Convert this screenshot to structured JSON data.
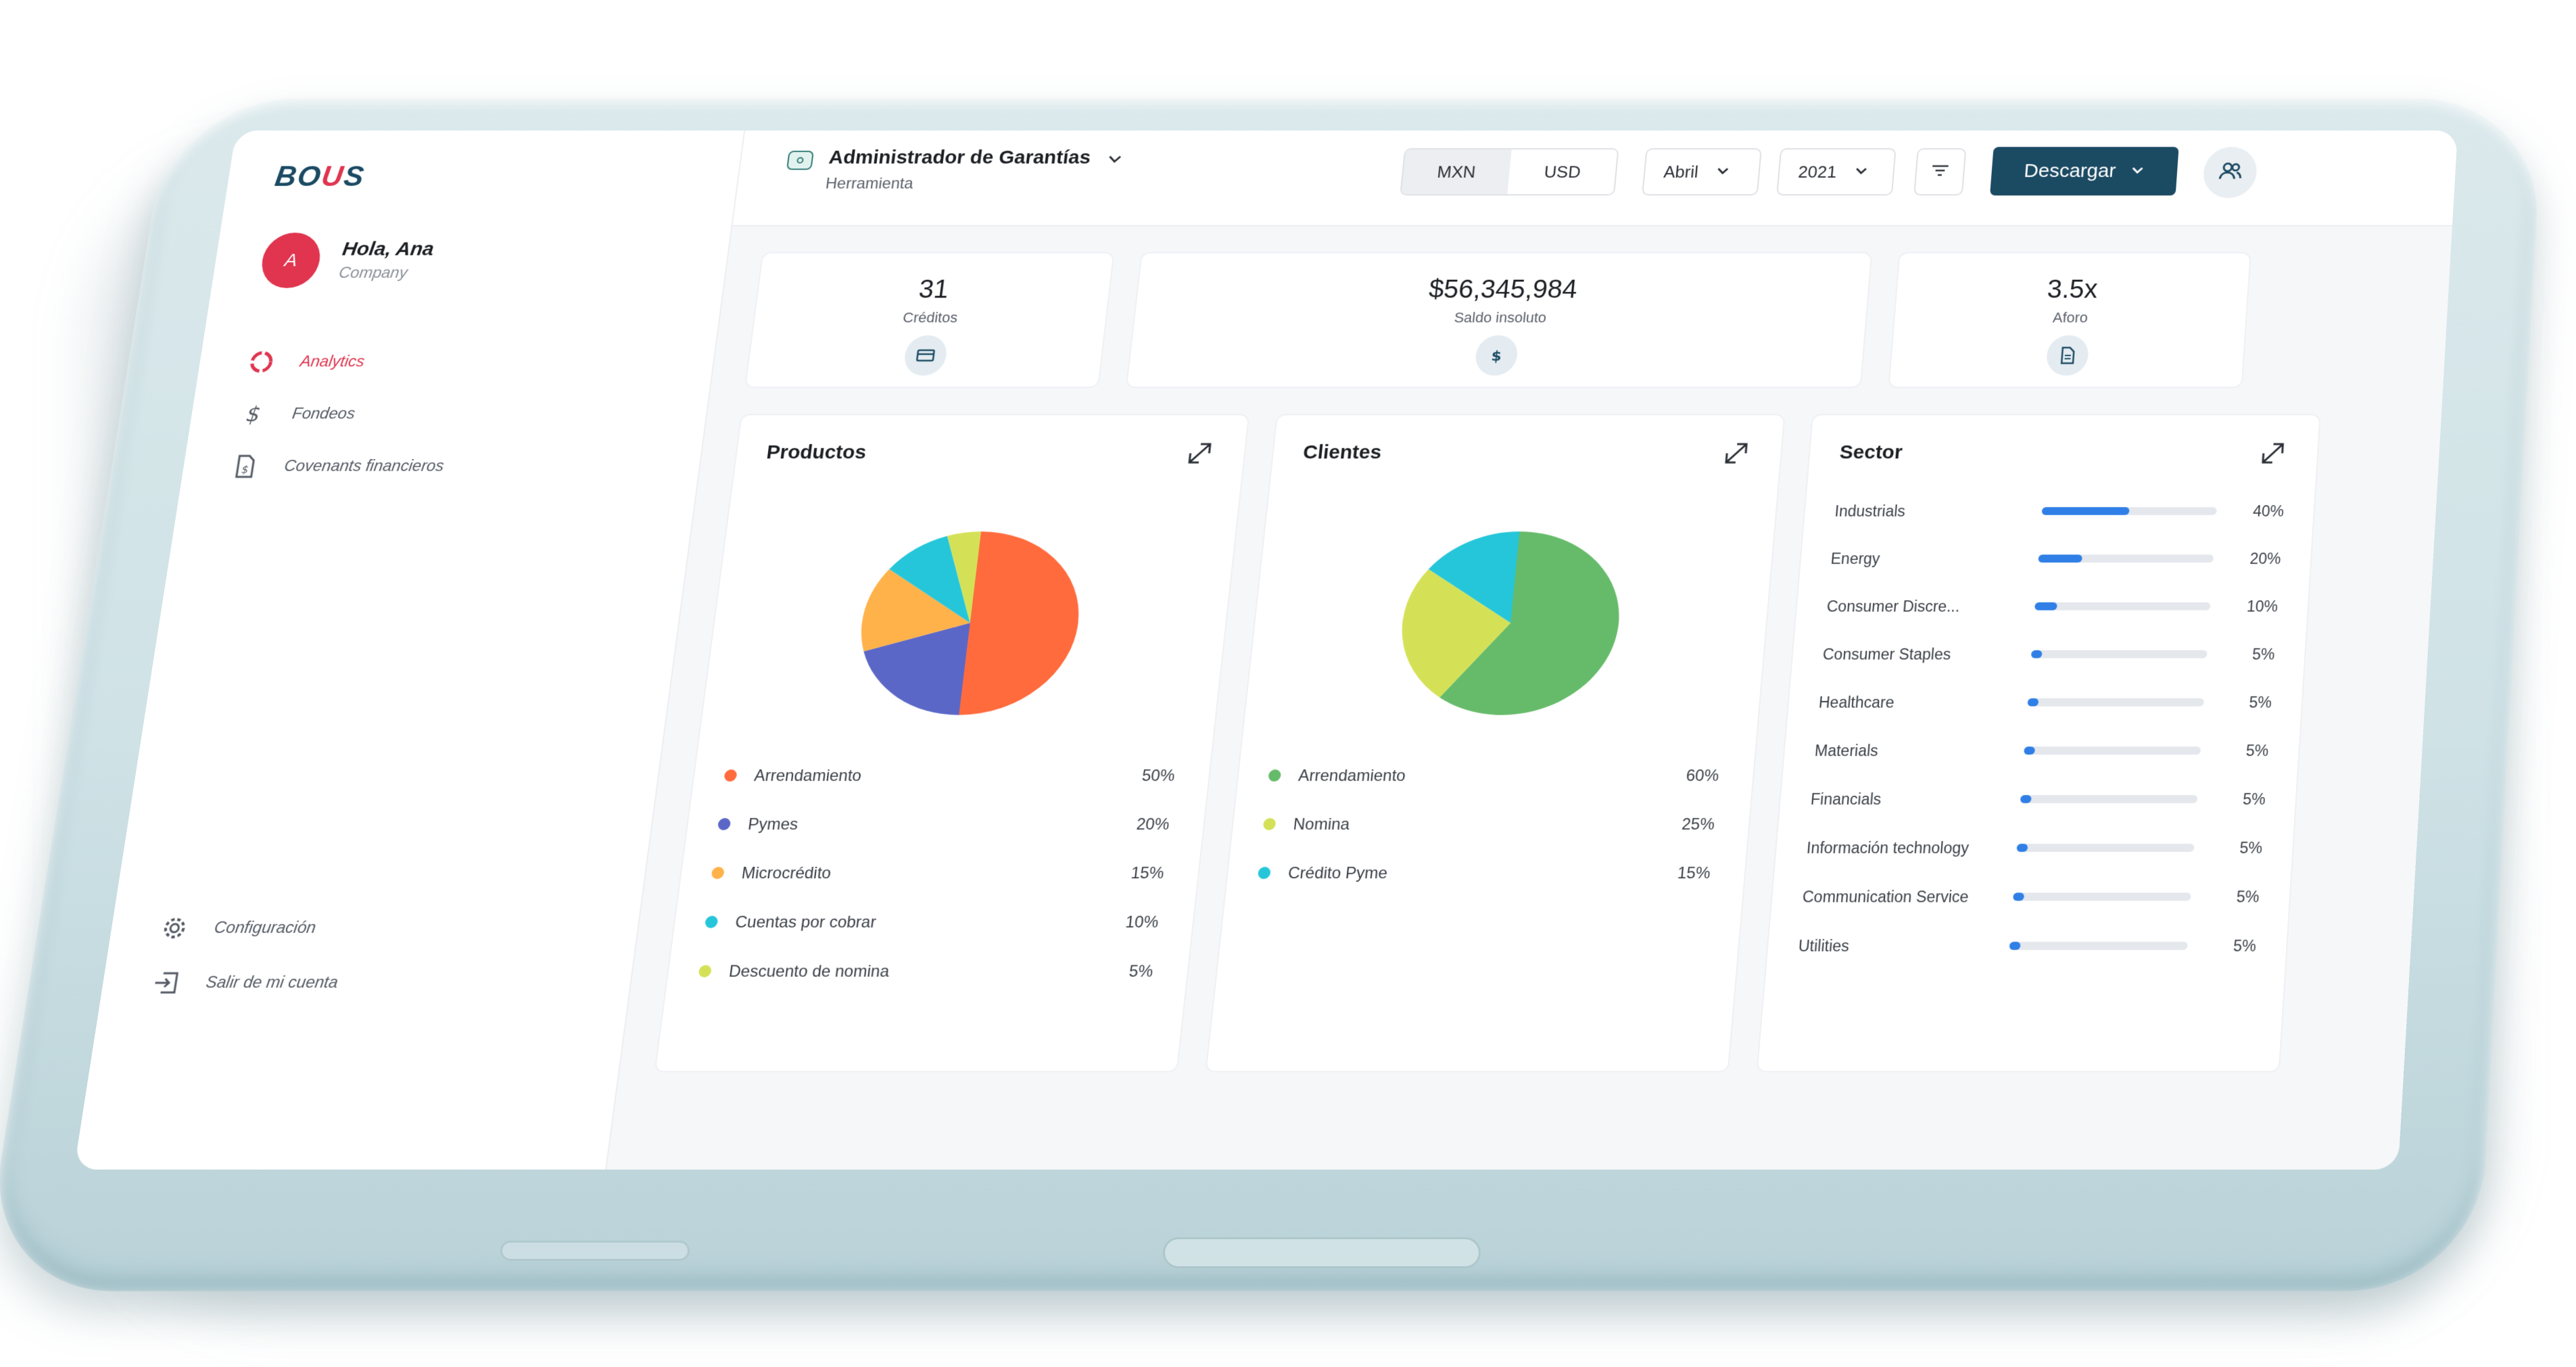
{
  "app": {
    "logo": {
      "pre": "BO",
      "u": "U",
      "post": "S"
    },
    "user": {
      "initial": "A",
      "greeting": "Hola, Ana",
      "company": "Company"
    }
  },
  "sidebar": {
    "items": [
      {
        "label": "Analytics",
        "icon": "circle-segments-icon",
        "active": true
      },
      {
        "label": "Fondeos",
        "icon": "dollar-icon",
        "active": false
      },
      {
        "label": "Covenants financieros",
        "icon": "document-dollar-icon",
        "active": false
      }
    ],
    "bottom": [
      {
        "label": "Configuración",
        "icon": "gear-icon"
      },
      {
        "label": "Salir de mi cuenta",
        "icon": "logout-icon"
      }
    ]
  },
  "header": {
    "title": "Administrador de Garantías",
    "subtitle": "Herramienta",
    "currency": {
      "options": [
        "MXN",
        "USD"
      ],
      "selected": "MXN"
    },
    "month": "Abril",
    "year": "2021",
    "download_label": "Descargar"
  },
  "kpis": [
    {
      "value": "31",
      "label": "Créditos",
      "icon": "card-icon"
    },
    {
      "value": "$56,345,984",
      "label": "Saldo insoluto",
      "icon": "dollar-icon"
    },
    {
      "value": "3.5x",
      "label": "Aforo",
      "icon": "document-icon"
    }
  ],
  "panels": {
    "productos": {
      "title": "Productos",
      "items": [
        {
          "label": "Arrendamiento",
          "pct": "50%",
          "value": 50,
          "color": "#ff6b3d"
        },
        {
          "label": "Pymes",
          "pct": "20%",
          "value": 20,
          "color": "#5b67c7"
        },
        {
          "label": "Microcrédito",
          "pct": "15%",
          "value": 15,
          "color": "#ffb24a"
        },
        {
          "label": "Cuentas por cobrar",
          "pct": "10%",
          "value": 10,
          "color": "#26c6da"
        },
        {
          "label": "Descuento de nomina",
          "pct": "5%",
          "value": 5,
          "color": "#d4e157"
        }
      ]
    },
    "clientes": {
      "title": "Clientes",
      "items": [
        {
          "label": "Arrendamiento",
          "pct": "60%",
          "value": 60,
          "color": "#66bb6a"
        },
        {
          "label": "Nomina",
          "pct": "25%",
          "value": 25,
          "color": "#d4e157"
        },
        {
          "label": "Crédito Pyme",
          "pct": "15%",
          "value": 15,
          "color": "#26c6da"
        }
      ]
    },
    "sector": {
      "title": "Sector",
      "items": [
        {
          "label": "Industrials",
          "pct": "40%",
          "value": 40
        },
        {
          "label": "Energy",
          "pct": "20%",
          "value": 20
        },
        {
          "label": "Consumer Discre...",
          "pct": "10%",
          "value": 10
        },
        {
          "label": "Consumer Staples",
          "pct": "5%",
          "value": 5
        },
        {
          "label": "Healthcare",
          "pct": "5%",
          "value": 5
        },
        {
          "label": "Materials",
          "pct": "5%",
          "value": 5
        },
        {
          "label": "Financials",
          "pct": "5%",
          "value": 5
        },
        {
          "label": "Información technology",
          "pct": "5%",
          "value": 5
        },
        {
          "label": "Communication Service",
          "pct": "5%",
          "value": 5
        },
        {
          "label": "Utilities",
          "pct": "5%",
          "value": 5
        }
      ]
    }
  },
  "colors": {
    "brand": "#1b4a63",
    "accent": "#e0344f",
    "bar": "#2f7fe6"
  }
}
